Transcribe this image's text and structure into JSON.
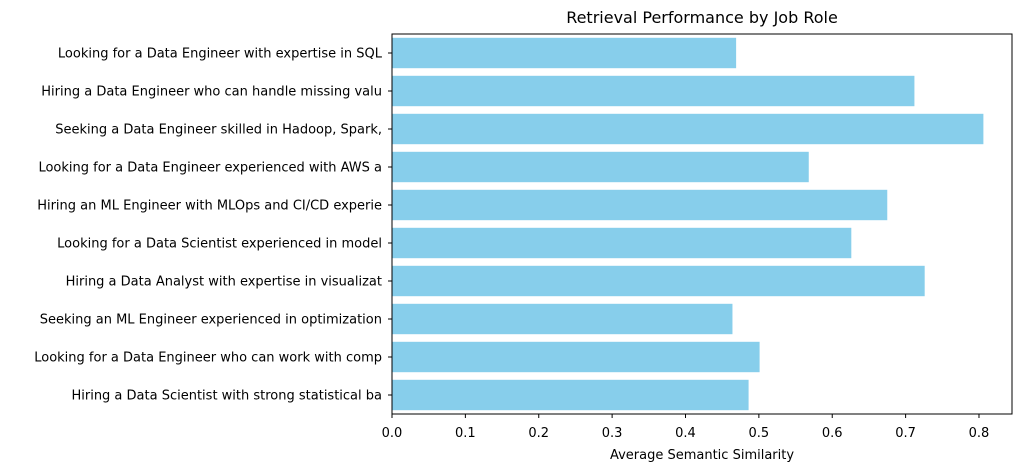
{
  "chart_data": {
    "type": "bar",
    "orientation": "horizontal",
    "title": "Retrieval Performance by Job Role",
    "xlabel": "Average Semantic Similarity",
    "ylabel": "",
    "xlim": [
      0,
      0.845
    ],
    "xticks": [
      "0.0",
      "0.1",
      "0.2",
      "0.3",
      "0.4",
      "0.5",
      "0.6",
      "0.7",
      "0.8"
    ],
    "bar_color": "#87ceeb",
    "grid": false,
    "legend": "none",
    "categories": [
      "Looking for a Data Engineer with expertise in SQL ",
      "Hiring a Data Engineer who can handle missing valu",
      "Seeking a Data Engineer skilled in Hadoop, Spark, ",
      "Looking for a Data Engineer experienced with AWS a",
      "Hiring an ML Engineer with MLOps and CI/CD experie",
      "Looking for a Data Scientist experienced in model ",
      "Hiring a Data Analyst with expertise in visualizat",
      "Seeking an ML Engineer experienced in optimization",
      "Looking for a Data Engineer who can work with comp",
      "Hiring a Data Scientist with strong statistical ba"
    ],
    "values": [
      0.469,
      0.712,
      0.806,
      0.568,
      0.675,
      0.626,
      0.726,
      0.464,
      0.501,
      0.486
    ]
  }
}
